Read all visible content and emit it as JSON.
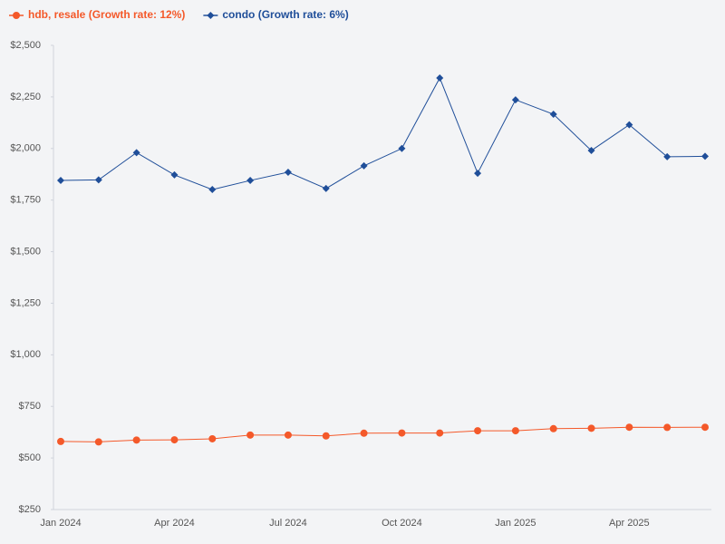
{
  "chart_data": {
    "type": "line",
    "categories": [
      "Jan 2024",
      null,
      null,
      "Apr 2024",
      null,
      null,
      "Jul 2024",
      null,
      null,
      "Oct 2024",
      null,
      null,
      "Jan 2025",
      null,
      null,
      "Apr 2025",
      null,
      null
    ],
    "series": [
      {
        "name": "hdb, resale (Growth rate: 12%)",
        "color": "#f4592a",
        "marker": "circle",
        "values": [
          580,
          578,
          587,
          588,
          593,
          611,
          611,
          607,
          620,
          621,
          621,
          632,
          632,
          642,
          644,
          649,
          648,
          649
        ]
      },
      {
        "name": "condo (Growth rate: 6%)",
        "color": "#1f4e99",
        "marker": "diamond",
        "values": [
          1845,
          1848,
          1980,
          1872,
          1801,
          1845,
          1885,
          1806,
          1916,
          2000,
          2342,
          1880,
          2236,
          2166,
          1990,
          2115,
          1960,
          1962
        ]
      }
    ],
    "ylim": [
      250,
      2500
    ],
    "yticks": [
      {
        "value": 250,
        "label": "$250"
      },
      {
        "value": 500,
        "label": "$500"
      },
      {
        "value": 750,
        "label": "$750"
      },
      {
        "value": 1000,
        "label": "$1,000"
      },
      {
        "value": 1250,
        "label": "$1,250"
      },
      {
        "value": 1500,
        "label": "$1,500"
      },
      {
        "value": 1750,
        "label": "$1,750"
      },
      {
        "value": 2000,
        "label": "$2,000"
      },
      {
        "value": 2250,
        "label": "$2,250"
      },
      {
        "value": 2500,
        "label": "$2,500"
      }
    ],
    "grid": false,
    "legend": "top-left"
  }
}
